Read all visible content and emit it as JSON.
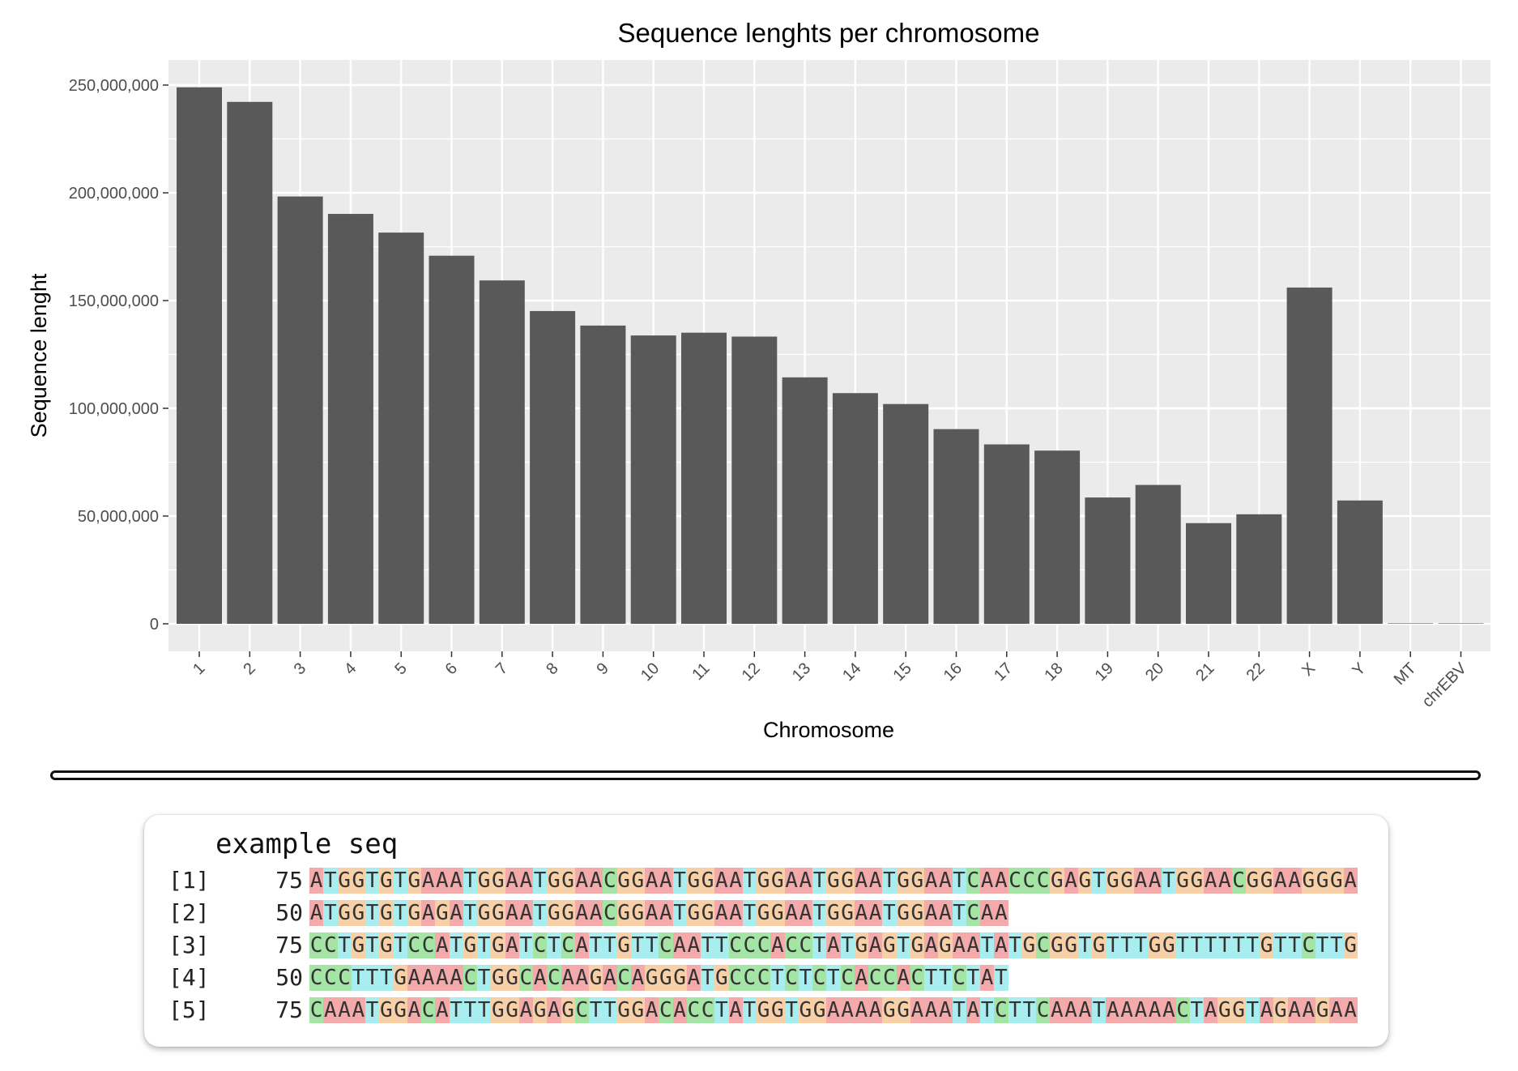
{
  "colors": {
    "panel": "#ebebeb",
    "grid": "#ffffff",
    "bar": "#595959",
    "axis_text": "#4d4d4d",
    "title_text": "#000000",
    "base_A": "#f4aaaa",
    "base_C": "#a4e4a4",
    "base_G": "#f8d0a8",
    "base_T": "#a8eef0"
  },
  "chart_data": {
    "type": "bar",
    "title": "Sequence lenghts per chromosome",
    "xlabel": "Chromosome",
    "ylabel": "Sequence lenght",
    "categories": [
      "1",
      "2",
      "3",
      "4",
      "5",
      "6",
      "7",
      "8",
      "9",
      "10",
      "11",
      "12",
      "13",
      "14",
      "15",
      "16",
      "17",
      "18",
      "19",
      "20",
      "21",
      "22",
      "X",
      "Y",
      "MT",
      "chrEBV"
    ],
    "values": [
      248956422,
      242193529,
      198295559,
      190214555,
      181538259,
      170805979,
      159345973,
      145138636,
      138394717,
      133797422,
      135086622,
      133275309,
      114364328,
      107043718,
      101991189,
      90338345,
      83257441,
      80373285,
      58617616,
      64444167,
      46709983,
      50818468,
      156040895,
      57227415,
      16569,
      171823
    ],
    "ylim": [
      0,
      260000000
    ],
    "yticks": [
      0,
      50000000,
      100000000,
      150000000,
      200000000,
      250000000
    ],
    "ytick_labels": [
      "0",
      "50,000,000",
      "100,000,000",
      "150,000,000",
      "200,000,000",
      "250,000,000"
    ],
    "grid": true,
    "legend": "none"
  },
  "sequences": {
    "title": "example seq",
    "rows": [
      {
        "index": "[1]",
        "length": "75",
        "bases": "ATGGTGTGAAATGGAATGGAACGGAATGGAATGGAATGGAATGGAATCAACCCGAGTGGAATGGAACGGAAGGGA"
      },
      {
        "index": "[2]",
        "length": "50",
        "bases": "ATGGTGTGAGATGGAATGGAACGGAATGGAATGGAATGGAATGGAATCAA"
      },
      {
        "index": "[3]",
        "length": "75",
        "bases": "CCTGTGTCCATGTGATCTCATTGTTCAATTCCCACCTATGAGTGAGAATATGCGGTGTTTGGTTTTTTGTTCTTG"
      },
      {
        "index": "[4]",
        "length": "50",
        "bases": "CCCTTTGAAAACTGGCACAAGACAGGGATGCCCTCTCTCACCACTTCTAT"
      },
      {
        "index": "[5]",
        "length": "75",
        "bases": "CAAATGGACATTTGGAGAGCTTGGACACCTATGGTGGAAAAGGAAATATCTTCAAATAAAAACTAGGTAGAAGAA"
      }
    ]
  }
}
